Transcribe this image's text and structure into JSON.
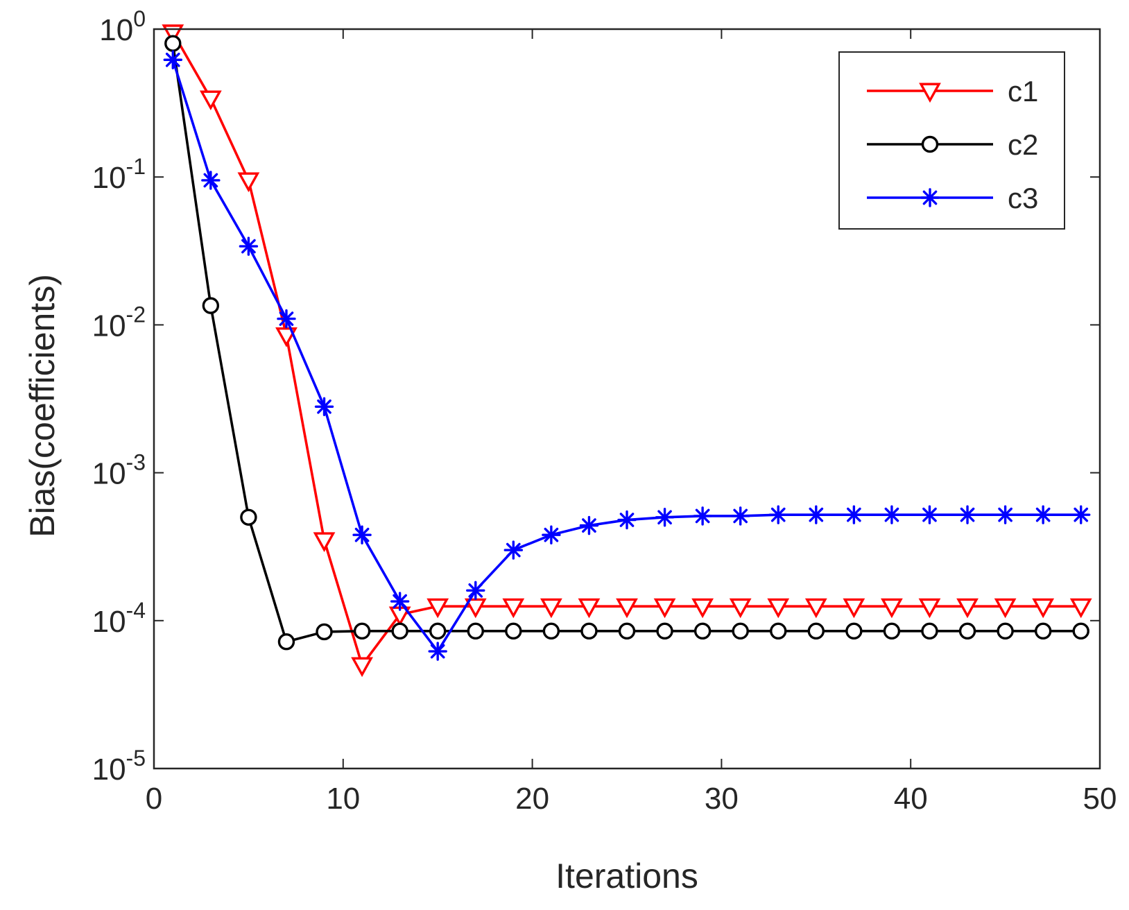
{
  "chart_data": {
    "type": "line",
    "title": "",
    "xlabel": "Iterations",
    "ylabel": "Bias(coefficients)",
    "xlim": [
      0,
      50
    ],
    "ylim": [
      1e-05,
      1
    ],
    "yscale": "log",
    "grid": false,
    "legend_position": "top-right",
    "x_ticks": [
      {
        "value": 0,
        "label": "0"
      },
      {
        "value": 10,
        "label": "10"
      },
      {
        "value": 20,
        "label": "20"
      },
      {
        "value": 30,
        "label": "30"
      },
      {
        "value": 40,
        "label": "40"
      },
      {
        "value": 50,
        "label": "50"
      }
    ],
    "y_ticks": [
      {
        "value": 1,
        "base": "10",
        "exp": "0"
      },
      {
        "value": 0.1,
        "base": "10",
        "exp": "-1"
      },
      {
        "value": 0.01,
        "base": "10",
        "exp": "-2"
      },
      {
        "value": 0.001,
        "base": "10",
        "exp": "-3"
      },
      {
        "value": 0.0001,
        "base": "10",
        "exp": "-4"
      },
      {
        "value": 1e-05,
        "base": "10",
        "exp": "-5"
      }
    ],
    "x": [
      1,
      3,
      5,
      7,
      9,
      11,
      13,
      15,
      17,
      19,
      21,
      23,
      25,
      27,
      29,
      31,
      33,
      35,
      37,
      39,
      41,
      43,
      45,
      47,
      49
    ],
    "series": [
      {
        "name": "c1",
        "color": "#ff0000",
        "marker": "triangle-down",
        "values": [
          0.95,
          0.34,
          0.095,
          0.0085,
          0.00035,
          5e-05,
          0.00011,
          0.000125,
          0.000125,
          0.000125,
          0.000125,
          0.000125,
          0.000125,
          0.000125,
          0.000125,
          0.000125,
          0.000125,
          0.000125,
          0.000125,
          0.000125,
          0.000125,
          0.000125,
          0.000125,
          0.000125,
          0.000125
        ]
      },
      {
        "name": "c2",
        "color": "#000000",
        "marker": "circle",
        "values": [
          0.8,
          0.0135,
          0.0005,
          7.2e-05,
          8.4e-05,
          8.5e-05,
          8.5e-05,
          8.5e-05,
          8.5e-05,
          8.5e-05,
          8.5e-05,
          8.5e-05,
          8.5e-05,
          8.5e-05,
          8.5e-05,
          8.5e-05,
          8.5e-05,
          8.5e-05,
          8.5e-05,
          8.5e-05,
          8.5e-05,
          8.5e-05,
          8.5e-05,
          8.5e-05,
          8.5e-05
        ]
      },
      {
        "name": "c3",
        "color": "#0000ff",
        "marker": "asterisk",
        "values": [
          0.62,
          0.095,
          0.034,
          0.011,
          0.0028,
          0.00038,
          0.000135,
          6.2e-05,
          0.00016,
          0.0003,
          0.00038,
          0.00044,
          0.00048,
          0.0005,
          0.00051,
          0.00051,
          0.00052,
          0.00052,
          0.00052,
          0.00052,
          0.00052,
          0.00052,
          0.00052,
          0.00052,
          0.00052
        ]
      }
    ]
  }
}
